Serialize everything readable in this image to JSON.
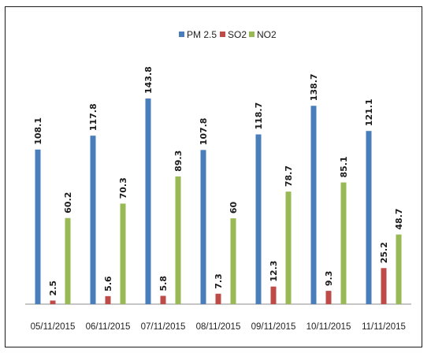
{
  "colors": {
    "pm25": "#4a7ebb",
    "so2": "#be4b48",
    "no2": "#98b954",
    "axis": "#8c8c8c"
  },
  "chart_data": {
    "type": "bar",
    "title": "",
    "xlabel": "",
    "ylabel": "",
    "categories": [
      "05/11/2015",
      "06/11/2015",
      "07/11/2015",
      "08/11/2015",
      "09/11/2015",
      "10/11/2015",
      "11/11/2015"
    ],
    "series": [
      {
        "name": "PM 2.5",
        "values": [
          108.1,
          117.8,
          143.8,
          107.8,
          118.7,
          138.7,
          121.1
        ],
        "labels": [
          "108.1",
          "117.8",
          "143.8",
          "107.8",
          "118.7",
          "138.7",
          "121.1"
        ]
      },
      {
        "name": "SO2",
        "values": [
          2.5,
          5.6,
          5.8,
          7.3,
          12.3,
          9.3,
          25.2
        ],
        "labels": [
          "2.5",
          "5.6",
          "5.8",
          "7.3",
          "12.3",
          "9.3",
          "25.2"
        ]
      },
      {
        "name": "NO2",
        "values": [
          60.2,
          70.3,
          89.3,
          60,
          78.7,
          85.1,
          48.7
        ],
        "labels": [
          "60.2",
          "70.3",
          "89.3",
          "60",
          "78.7",
          "85.1",
          "48.7"
        ]
      }
    ],
    "ylim": [
      0,
      143.8
    ],
    "grid": false,
    "legend": "top-center"
  }
}
